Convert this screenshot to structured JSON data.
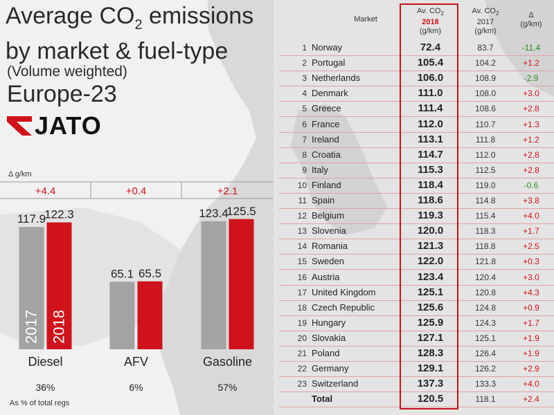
{
  "header": {
    "title_line1": "Average CO",
    "title_sub": "2",
    "title_line1_rest": " emissions",
    "title_line2": "by market & fuel-type",
    "subtitle": "(Volume weighted)",
    "region": "Europe-23"
  },
  "logo": {
    "text": "JATO",
    "icon": "jato-arrow-icon",
    "brand_color": "#d0121b"
  },
  "left_chart": {
    "delta_label": "Δ g/km",
    "pct_footnote": "As % of total regs",
    "year_labels": [
      "2017",
      "2018"
    ]
  },
  "chart_data": [
    {
      "type": "bar",
      "categories": [
        "Diesel",
        "AFV",
        "Gasoline"
      ],
      "series": [
        {
          "name": "2017",
          "values": [
            117.9,
            65.1,
            123.4
          ],
          "color": "#a3a3a3"
        },
        {
          "name": "2018",
          "values": [
            122.3,
            65.5,
            125.5
          ],
          "color": "#d0121b"
        }
      ],
      "value_labels": {
        "2017": [
          "117.9",
          "65.1",
          "123.4"
        ],
        "2018": [
          "122.3",
          "65.5",
          "125.5"
        ]
      },
      "deltas": [
        "+4.4",
        "+0.4",
        "+2.1"
      ],
      "share_pct": [
        "36%",
        "6%",
        "57%"
      ],
      "ylim": [
        0,
        140
      ],
      "title": "",
      "xlabel": "",
      "ylabel": ""
    },
    {
      "type": "table",
      "columns": {
        "market": "Market",
        "av2018_l1": "Av. CO",
        "av2018_sub": "2",
        "av2018_l2": "2018",
        "av2018_l3": "(g/km)",
        "av2017_l1": "Av. CO",
        "av2017_sub": "2",
        "av2017_l2": "2017",
        "av2017_l3": "(g/km)",
        "delta_l1": "Δ",
        "delta_l2": "(g/km)"
      },
      "rows": [
        {
          "rank": "1",
          "market": "Norway",
          "v2018": "72.4",
          "v2017": "83.7",
          "delta": "-11.4"
        },
        {
          "rank": "2",
          "market": "Portugal",
          "v2018": "105.4",
          "v2017": "104.2",
          "delta": "+1.2"
        },
        {
          "rank": "3",
          "market": "Netherlands",
          "v2018": "106.0",
          "v2017": "108.9",
          "delta": "-2.9"
        },
        {
          "rank": "4",
          "market": "Denmark",
          "v2018": "111.0",
          "v2017": "108.0",
          "delta": "+3.0"
        },
        {
          "rank": "5",
          "market": "Greece",
          "v2018": "111.4",
          "v2017": "108.6",
          "delta": "+2.8"
        },
        {
          "rank": "6",
          "market": "France",
          "v2018": "112.0",
          "v2017": "110.7",
          "delta": "+1.3"
        },
        {
          "rank": "7",
          "market": "Ireland",
          "v2018": "113.1",
          "v2017": "111.8",
          "delta": "+1.2"
        },
        {
          "rank": "8",
          "market": "Croatia",
          "v2018": "114.7",
          "v2017": "112.0",
          "delta": "+2.8"
        },
        {
          "rank": "9",
          "market": "Italy",
          "v2018": "115.3",
          "v2017": "112.5",
          "delta": "+2.8"
        },
        {
          "rank": "10",
          "market": "Finland",
          "v2018": "118.4",
          "v2017": "119.0",
          "delta": "-0.6"
        },
        {
          "rank": "11",
          "market": "Spain",
          "v2018": "118.6",
          "v2017": "114.8",
          "delta": "+3.8"
        },
        {
          "rank": "12",
          "market": "Belgium",
          "v2018": "119.3",
          "v2017": "115.4",
          "delta": "+4.0"
        },
        {
          "rank": "13",
          "market": "Slovenia",
          "v2018": "120.0",
          "v2017": "118.3",
          "delta": "+1.7"
        },
        {
          "rank": "14",
          "market": "Romania",
          "v2018": "121.3",
          "v2017": "118.8",
          "delta": "+2.5"
        },
        {
          "rank": "15",
          "market": "Sweden",
          "v2018": "122.0",
          "v2017": "121.8",
          "delta": "+0.3"
        },
        {
          "rank": "16",
          "market": "Austria",
          "v2018": "123.4",
          "v2017": "120.4",
          "delta": "+3.0"
        },
        {
          "rank": "17",
          "market": "United Kingdom",
          "v2018": "125.1",
          "v2017": "120.8",
          "delta": "+4.3"
        },
        {
          "rank": "18",
          "market": "Czech Republic",
          "v2018": "125.6",
          "v2017": "124.8",
          "delta": "+0.9"
        },
        {
          "rank": "19",
          "market": "Hungary",
          "v2018": "125.9",
          "v2017": "124.3",
          "delta": "+1.7"
        },
        {
          "rank": "20",
          "market": "Slovakia",
          "v2018": "127.1",
          "v2017": "125.1",
          "delta": "+1.9"
        },
        {
          "rank": "21",
          "market": "Poland",
          "v2018": "128.3",
          "v2017": "126.4",
          "delta": "+1.9"
        },
        {
          "rank": "22",
          "market": "Germany",
          "v2018": "129.1",
          "v2017": "126.2",
          "delta": "+2.9"
        },
        {
          "rank": "23",
          "market": "Switzerland",
          "v2018": "137.3",
          "v2017": "133.3",
          "delta": "+4.0"
        }
      ],
      "total": {
        "market": "Total",
        "v2018": "120.5",
        "v2017": "118.1",
        "delta": "+2.4"
      }
    }
  ],
  "colors": {
    "accent": "#d0121b",
    "bar2017": "#a3a3a3",
    "positive": "#d0121b",
    "negative": "#2a8a2a",
    "row_line": "#e2a1a1"
  }
}
